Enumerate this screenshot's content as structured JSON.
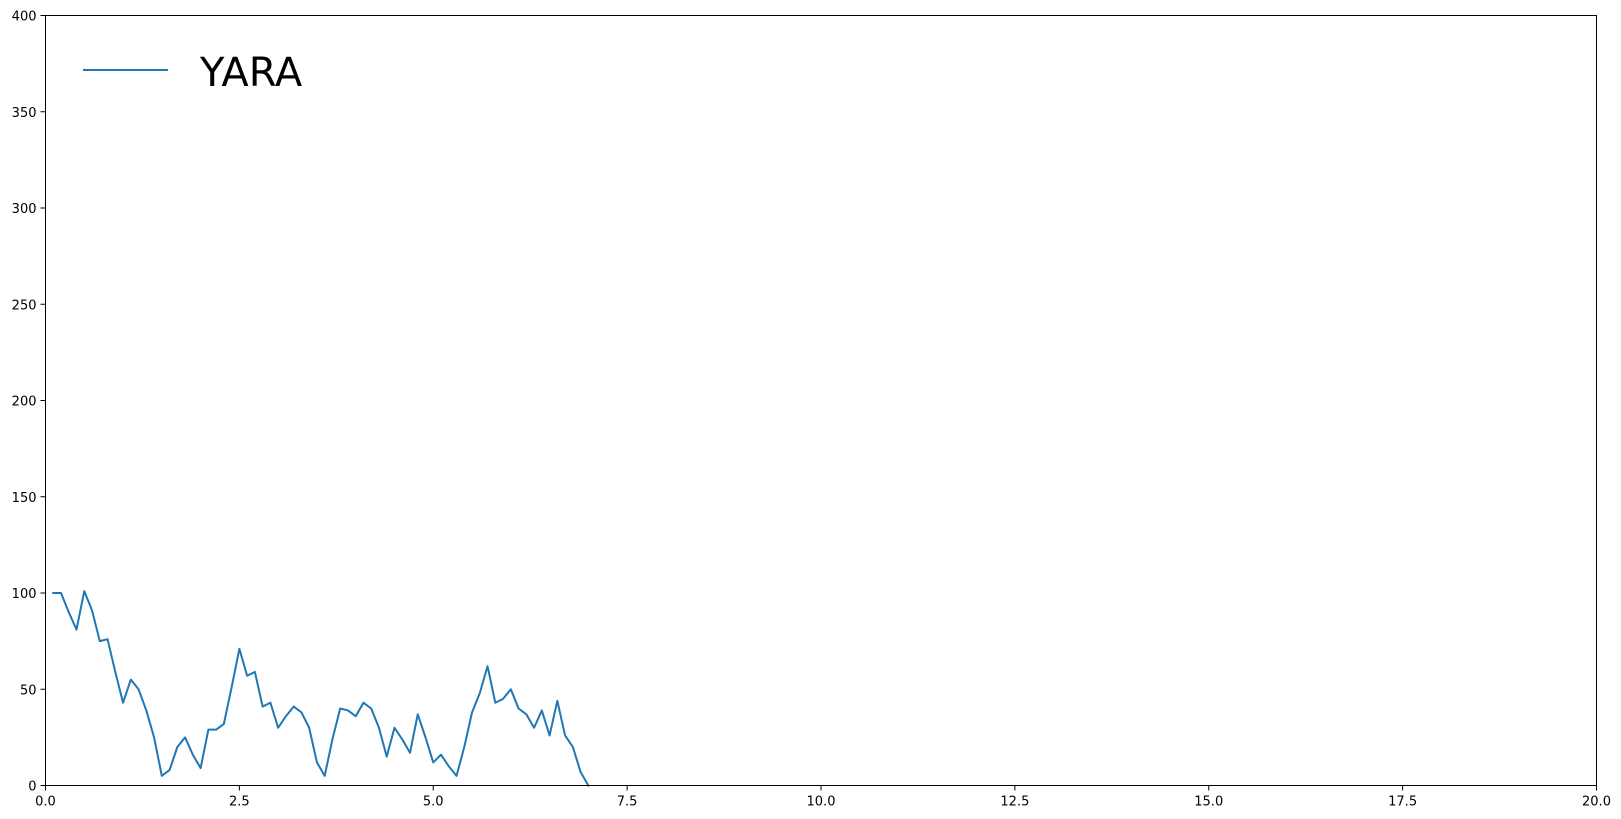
{
  "chart_data": {
    "type": "line",
    "title": "",
    "xlabel": "",
    "ylabel": "",
    "xlim": [
      0,
      20
    ],
    "ylim": [
      0,
      400
    ],
    "x_ticks": [
      0.0,
      2.5,
      5.0,
      7.5,
      10.0,
      12.5,
      15.0,
      17.5,
      20.0
    ],
    "x_tick_labels": [
      "0.0",
      "2.5",
      "5.0",
      "7.5",
      "10.0",
      "12.5",
      "15.0",
      "17.5",
      "20.0"
    ],
    "y_ticks": [
      0,
      50,
      100,
      150,
      200,
      250,
      300,
      350,
      400
    ],
    "y_tick_labels": [
      "0",
      "50",
      "100",
      "150",
      "200",
      "250",
      "300",
      "350",
      "400"
    ],
    "grid": false,
    "legend": {
      "placement": "top-left",
      "entries": [
        "YARA"
      ]
    },
    "series": [
      {
        "name": "YARA",
        "color": "#1f77b4",
        "x": [
          0.1,
          0.2,
          0.3,
          0.4,
          0.5,
          0.6,
          0.7,
          0.8,
          0.9,
          1.0,
          1.1,
          1.2,
          1.3,
          1.4,
          1.5,
          1.6,
          1.7,
          1.8,
          1.9,
          2.0,
          2.1,
          2.2,
          2.3,
          2.4,
          2.5,
          2.6,
          2.7,
          2.8,
          2.9,
          3.0,
          3.1,
          3.2,
          3.3,
          3.4,
          3.5,
          3.6,
          3.7,
          3.8,
          3.9,
          4.0,
          4.1,
          4.2,
          4.3,
          4.4,
          4.5,
          4.6,
          4.7,
          4.8,
          4.9,
          5.0,
          5.1,
          5.2,
          5.3,
          5.4,
          5.5,
          5.6,
          5.7,
          5.8,
          5.9,
          6.0,
          6.1,
          6.2,
          6.3,
          6.4,
          6.5,
          6.6,
          6.7,
          6.8,
          6.9,
          7.0
        ],
        "y": [
          100,
          100,
          90,
          81,
          101,
          91,
          75,
          76,
          59,
          43,
          55,
          50,
          39,
          25,
          5,
          8,
          20,
          25,
          16,
          9,
          29,
          29,
          32,
          51,
          71,
          57,
          59,
          41,
          43,
          30,
          36,
          41,
          38,
          30,
          12,
          5,
          24,
          40,
          39,
          36,
          43,
          40,
          30,
          15,
          30,
          24,
          17,
          37,
          25,
          12,
          16,
          10,
          5,
          20,
          38,
          48,
          62,
          43,
          45,
          50,
          40,
          37,
          30,
          39,
          26,
          44,
          26,
          20,
          7,
          0
        ]
      }
    ]
  }
}
